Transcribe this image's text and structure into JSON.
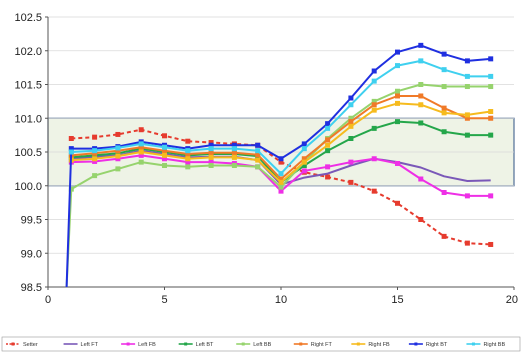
{
  "chart_data": {
    "type": "line",
    "xlim": [
      0,
      20
    ],
    "ylim": [
      98.5,
      102.5
    ],
    "xticks": [
      0,
      5,
      10,
      15,
      20
    ],
    "yticks": [
      98.5,
      99.0,
      99.5,
      100.0,
      100.5,
      101.0,
      101.5,
      102.0,
      102.5
    ],
    "xtick_labels": [
      "0",
      "5",
      "10",
      "15",
      "20"
    ],
    "ytick_labels": [
      "98.5",
      "99.0",
      "99.5",
      "100.0",
      "100.5",
      "101.0",
      "101.5",
      "102.0",
      "102.5"
    ],
    "band": {
      "y_from": 100.0,
      "y_to": 101.0,
      "x_from": 0,
      "x_to": 20,
      "fill": "#eef3e6",
      "stroke": "#4f6d96"
    },
    "grid": "horizontal",
    "legend_position": "bottom",
    "series": [
      {
        "name": "Setter",
        "color": "#e63b2e",
        "dashed": true,
        "marker": "square",
        "x": [
          1,
          2,
          3,
          4,
          5,
          6,
          7,
          8,
          9,
          10,
          11,
          12,
          13,
          14,
          15,
          16,
          17,
          18,
          19
        ],
        "y": [
          100.7,
          100.72,
          100.76,
          100.83,
          100.74,
          100.66,
          100.64,
          100.62,
          100.6,
          100.35,
          100.2,
          100.13,
          100.05,
          99.92,
          99.74,
          99.5,
          99.25,
          99.15,
          99.13
        ]
      },
      {
        "name": "Left FT",
        "color": "#7a58b8",
        "dashed": false,
        "marker": "none",
        "x": [
          1,
          2,
          3,
          4,
          5,
          6,
          7,
          8,
          9,
          10,
          11,
          12,
          13,
          14,
          15,
          16,
          17,
          18,
          19
        ],
        "y": [
          100.4,
          100.43,
          100.45,
          100.52,
          100.47,
          100.42,
          100.43,
          100.43,
          100.38,
          100.02,
          100.12,
          100.18,
          100.3,
          100.4,
          100.35,
          100.27,
          100.14,
          100.07,
          100.08
        ]
      },
      {
        "name": "Left FB",
        "color": "#ee2fe6",
        "dashed": false,
        "marker": "square",
        "x": [
          1,
          2,
          3,
          4,
          5,
          6,
          7,
          8,
          9,
          10,
          11,
          12,
          13,
          14,
          15,
          16,
          17,
          18,
          19
        ],
        "y": [
          100.35,
          100.36,
          100.4,
          100.45,
          100.4,
          100.35,
          100.35,
          100.33,
          100.28,
          99.92,
          100.22,
          100.28,
          100.35,
          100.4,
          100.33,
          100.1,
          99.9,
          99.85,
          99.85
        ]
      },
      {
        "name": "Left BT",
        "color": "#24a64a",
        "dashed": false,
        "marker": "square",
        "x": [
          1,
          2,
          3,
          4,
          5,
          6,
          7,
          8,
          9,
          10,
          11,
          12,
          13,
          14,
          15,
          16,
          17,
          18,
          19
        ],
        "y": [
          100.42,
          100.45,
          100.48,
          100.55,
          100.5,
          100.45,
          100.47,
          100.47,
          100.44,
          100.05,
          100.3,
          100.52,
          100.7,
          100.85,
          100.95,
          100.93,
          100.8,
          100.75,
          100.75
        ]
      },
      {
        "name": "Left BB",
        "color": "#96d36d",
        "dashed": false,
        "marker": "square",
        "x": [
          0.8,
          1,
          2,
          3,
          4,
          5,
          6,
          7,
          8,
          9,
          10,
          11,
          12,
          13,
          14,
          15,
          16,
          17,
          18,
          19
        ],
        "y": [
          98.5,
          99.95,
          100.15,
          100.25,
          100.35,
          100.3,
          100.28,
          100.3,
          100.3,
          100.28,
          99.98,
          100.35,
          100.7,
          101.0,
          101.25,
          101.4,
          101.5,
          101.47,
          101.47,
          101.47
        ]
      },
      {
        "name": "Right FT",
        "color": "#f07a28",
        "dashed": false,
        "marker": "square",
        "x": [
          1,
          2,
          3,
          4,
          5,
          6,
          7,
          8,
          9,
          10,
          11,
          12,
          13,
          14,
          15,
          16,
          17,
          18,
          19
        ],
        "y": [
          100.45,
          100.48,
          100.52,
          100.57,
          100.52,
          100.47,
          100.49,
          100.49,
          100.46,
          100.1,
          100.4,
          100.68,
          100.95,
          101.2,
          101.33,
          101.33,
          101.15,
          101.0,
          101.0
        ]
      },
      {
        "name": "Right FB",
        "color": "#f6bb1e",
        "dashed": false,
        "marker": "square",
        "x": [
          1,
          2,
          3,
          4,
          5,
          6,
          7,
          8,
          9,
          10,
          11,
          12,
          13,
          14,
          15,
          16,
          17,
          18,
          19
        ],
        "y": [
          100.38,
          100.4,
          100.44,
          100.5,
          100.45,
          100.4,
          100.42,
          100.42,
          100.38,
          100.05,
          100.35,
          100.6,
          100.88,
          101.12,
          101.22,
          101.2,
          101.08,
          101.05,
          101.1
        ]
      },
      {
        "name": "Right BT",
        "color": "#1f2fe0",
        "dashed": false,
        "marker": "square",
        "x": [
          0.8,
          1,
          2,
          3,
          4,
          5,
          6,
          7,
          8,
          9,
          10,
          11,
          12,
          13,
          14,
          15,
          16,
          17,
          18,
          19
        ],
        "y": [
          98.5,
          100.55,
          100.55,
          100.58,
          100.65,
          100.6,
          100.55,
          100.6,
          100.6,
          100.6,
          100.4,
          100.62,
          100.92,
          101.3,
          101.7,
          101.98,
          102.08,
          101.95,
          101.85,
          101.88
        ]
      },
      {
        "name": "Right BB",
        "color": "#3fd0ef",
        "dashed": false,
        "marker": "square",
        "x": [
          1,
          2,
          3,
          4,
          5,
          6,
          7,
          8,
          9,
          10,
          11,
          12,
          13,
          14,
          15,
          16,
          17,
          18,
          19
        ],
        "y": [
          100.5,
          100.52,
          100.56,
          100.62,
          100.57,
          100.52,
          100.55,
          100.55,
          100.52,
          100.18,
          100.55,
          100.85,
          101.2,
          101.55,
          101.78,
          101.85,
          101.72,
          101.62,
          101.62
        ]
      }
    ]
  }
}
